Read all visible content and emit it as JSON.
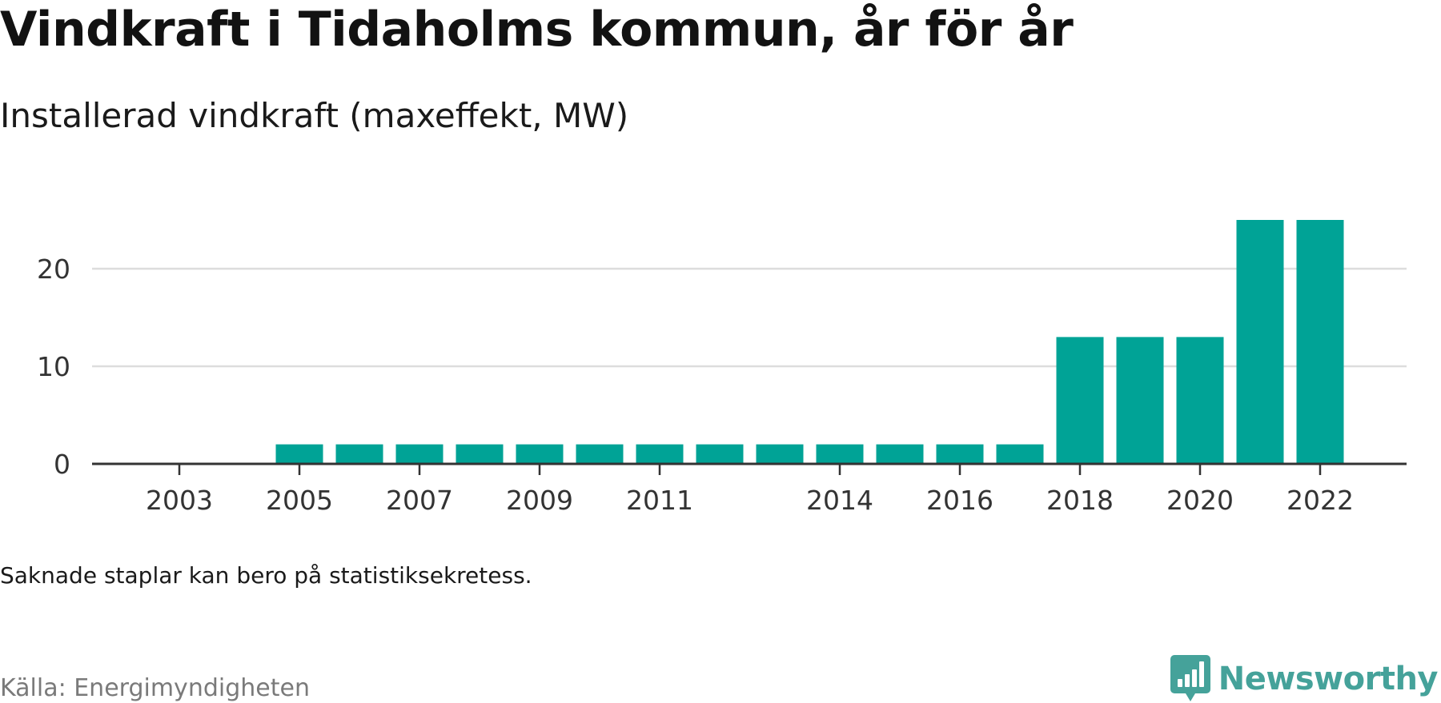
{
  "title": "Vindkraft i Tidaholms kommun, år för år",
  "subtitle": "Installerad vindkraft (maxeffekt, MW)",
  "note": "Saknade staplar kan bero på statistiksekretess.",
  "source": "Källa: Energimyndigheten",
  "brand": {
    "name": "Newsworthy",
    "icon": "newsworthy-logo-icon",
    "color": "#45a29a"
  },
  "colors": {
    "bar": "#00a396",
    "gridline": "#dddddd",
    "axis": "#333333"
  },
  "chart_data": {
    "type": "bar",
    "categories": [
      "2003",
      "2004",
      "2005",
      "2006",
      "2007",
      "2008",
      "2009",
      "2010",
      "2011",
      "2012",
      "2013",
      "2014",
      "2015",
      "2016",
      "2017",
      "2018",
      "2019",
      "2020",
      "2021",
      "2022"
    ],
    "values": [
      null,
      null,
      2,
      2,
      2,
      2,
      2,
      2,
      2,
      2,
      2,
      2,
      2,
      2,
      2,
      13,
      13,
      13,
      25,
      25
    ],
    "x_tick_labels": [
      "2003",
      "2005",
      "2007",
      "2009",
      "2011",
      "2014",
      "2016",
      "2018",
      "2020",
      "2022"
    ],
    "y_ticks": [
      0,
      10,
      20
    ],
    "ylim": [
      0,
      25
    ],
    "title": "Vindkraft i Tidaholms kommun, år för år",
    "subtitle": "Installerad vindkraft (maxeffekt, MW)",
    "xlabel": "",
    "ylabel": "",
    "grid": true,
    "legend": "none"
  }
}
